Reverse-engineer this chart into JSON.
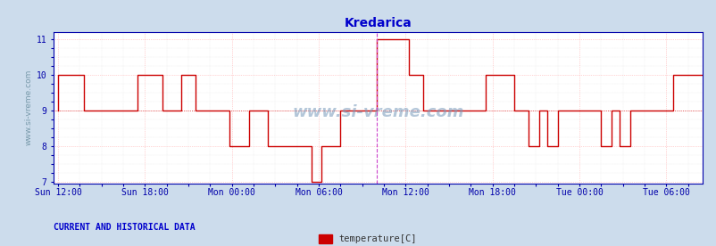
{
  "title": "Kredarica",
  "title_color": "#0000cc",
  "bg_color": "#ccdcec",
  "plot_bg_color": "#ffffff",
  "grid_color_major": "#ffaaaa",
  "grid_color_minor": "#dddddd",
  "ylabel_text": "www.si-vreme.com",
  "ylabel_color": "#7799aa",
  "watermark": "www.si-vreme.com",
  "watermark_color": "#7799bb",
  "line_color": "#cc0000",
  "line_width": 1.0,
  "ylim_min": 7,
  "ylim_max": 11,
  "yticks": [
    7,
    8,
    9,
    10,
    11
  ],
  "tick_color": "#0000aa",
  "spine_color": "#0000aa",
  "xtick_labels": [
    "Sun 12:00",
    "Sun 18:00",
    "Mon 00:00",
    "Mon 06:00",
    "Mon 12:00",
    "Mon 18:00",
    "Tue 00:00",
    "Tue 06:00"
  ],
  "xtick_hours": [
    0,
    6,
    12,
    18,
    24,
    30,
    36,
    42
  ],
  "xlim_min": -0.3,
  "xlim_max": 44.5,
  "current_line_hour": 22.0,
  "current_line_color": "#cc44cc",
  "hline_y": 9,
  "hline_color": "#cc0000",
  "legend_label": "temperature[C]",
  "legend_color": "#cc0000",
  "footer_text": "CURRENT AND HISTORICAL DATA",
  "footer_color": "#0000cc",
  "temperature_data": [
    [
      0,
      9
    ],
    [
      0,
      10
    ],
    [
      1.8,
      10
    ],
    [
      1.8,
      9
    ],
    [
      5.5,
      9
    ],
    [
      5.5,
      10
    ],
    [
      7.2,
      10
    ],
    [
      7.2,
      9
    ],
    [
      8.5,
      9
    ],
    [
      8.5,
      10
    ],
    [
      9.5,
      10
    ],
    [
      9.5,
      9
    ],
    [
      11.8,
      9
    ],
    [
      11.8,
      8
    ],
    [
      13.2,
      8
    ],
    [
      13.2,
      9
    ],
    [
      14.5,
      9
    ],
    [
      14.5,
      8
    ],
    [
      16.5,
      8
    ],
    [
      16.5,
      8
    ],
    [
      17.5,
      8
    ],
    [
      17.5,
      7
    ],
    [
      18.2,
      7
    ],
    [
      18.2,
      8
    ],
    [
      19.5,
      8
    ],
    [
      19.5,
      9
    ],
    [
      22.0,
      9
    ],
    [
      22.0,
      11
    ],
    [
      24.2,
      11
    ],
    [
      24.2,
      10
    ],
    [
      25.2,
      10
    ],
    [
      25.2,
      9
    ],
    [
      29.5,
      9
    ],
    [
      29.5,
      10
    ],
    [
      31.5,
      10
    ],
    [
      31.5,
      9
    ],
    [
      32.5,
      9
    ],
    [
      32.5,
      8
    ],
    [
      33.2,
      8
    ],
    [
      33.2,
      9
    ],
    [
      33.8,
      9
    ],
    [
      33.8,
      8
    ],
    [
      34.5,
      8
    ],
    [
      34.5,
      9
    ],
    [
      37.5,
      9
    ],
    [
      37.5,
      8
    ],
    [
      38.2,
      8
    ],
    [
      38.2,
      9
    ],
    [
      38.8,
      9
    ],
    [
      38.8,
      8
    ],
    [
      39.5,
      8
    ],
    [
      39.5,
      9
    ],
    [
      41.0,
      9
    ],
    [
      41.0,
      9
    ],
    [
      42.5,
      9
    ],
    [
      42.5,
      10
    ],
    [
      44.5,
      10
    ]
  ]
}
